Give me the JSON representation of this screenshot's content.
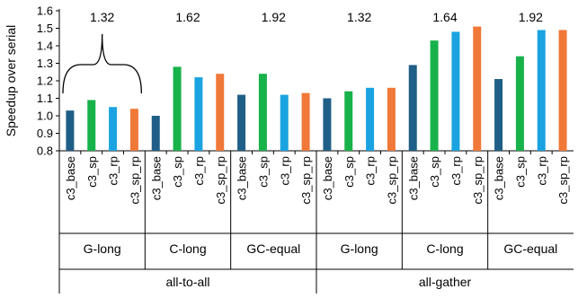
{
  "chart_data": {
    "type": "bar",
    "ylabel": "Speedup over serial",
    "ylim": [
      0.8,
      1.6
    ],
    "yticks": [
      "0.8",
      "0.9",
      "1.0",
      "1.1",
      "1.2",
      "1.3",
      "1.4",
      "1.5",
      "1.6"
    ],
    "series_colors": {
      "c3_base": "#1f5f87",
      "c3_sp": "#18b24a",
      "c3_rp": "#1aa3e0",
      "c3_sp_rp": "#f07838"
    },
    "outer_groups": [
      {
        "label": "all-to-all",
        "groups": [
          {
            "label": "G-long",
            "top_label": "1.32",
            "bars": [
              {
                "name": "c3_base",
                "value": 1.03
              },
              {
                "name": "c3_sp",
                "value": 1.09
              },
              {
                "name": "c3_rp",
                "value": 1.05
              },
              {
                "name": "c3_sp_rp",
                "value": 1.04
              }
            ]
          },
          {
            "label": "C-long",
            "top_label": "1.62",
            "bars": [
              {
                "name": "c3_base",
                "value": 1.0
              },
              {
                "name": "c3_sp",
                "value": 1.28
              },
              {
                "name": "c3_rp",
                "value": 1.22
              },
              {
                "name": "c3_sp_rp",
                "value": 1.24
              }
            ]
          },
          {
            "label": "GC-equal",
            "top_label": "1.92",
            "bars": [
              {
                "name": "c3_base",
                "value": 1.12
              },
              {
                "name": "c3_sp",
                "value": 1.24
              },
              {
                "name": "c3_rp",
                "value": 1.12
              },
              {
                "name": "c3_sp_rp",
                "value": 1.13
              }
            ]
          }
        ]
      },
      {
        "label": "all-gather",
        "groups": [
          {
            "label": "G-long",
            "top_label": "1.32",
            "bars": [
              {
                "name": "c3_base",
                "value": 1.1
              },
              {
                "name": "c3_sp",
                "value": 1.14
              },
              {
                "name": "c3_rp",
                "value": 1.16
              },
              {
                "name": "c3_sp_rp",
                "value": 1.16
              }
            ]
          },
          {
            "label": "C-long",
            "top_label": "1.64",
            "bars": [
              {
                "name": "c3_base",
                "value": 1.29
              },
              {
                "name": "c3_sp",
                "value": 1.43
              },
              {
                "name": "c3_rp",
                "value": 1.48
              },
              {
                "name": "c3_sp_rp",
                "value": 1.51
              }
            ]
          },
          {
            "label": "GC-equal",
            "top_label": "1.92",
            "bars": [
              {
                "name": "c3_base",
                "value": 1.21
              },
              {
                "name": "c3_sp",
                "value": 1.34
              },
              {
                "name": "c3_rp",
                "value": 1.49
              },
              {
                "name": "c3_sp_rp",
                "value": 1.49
              }
            ]
          }
        ]
      }
    ]
  }
}
